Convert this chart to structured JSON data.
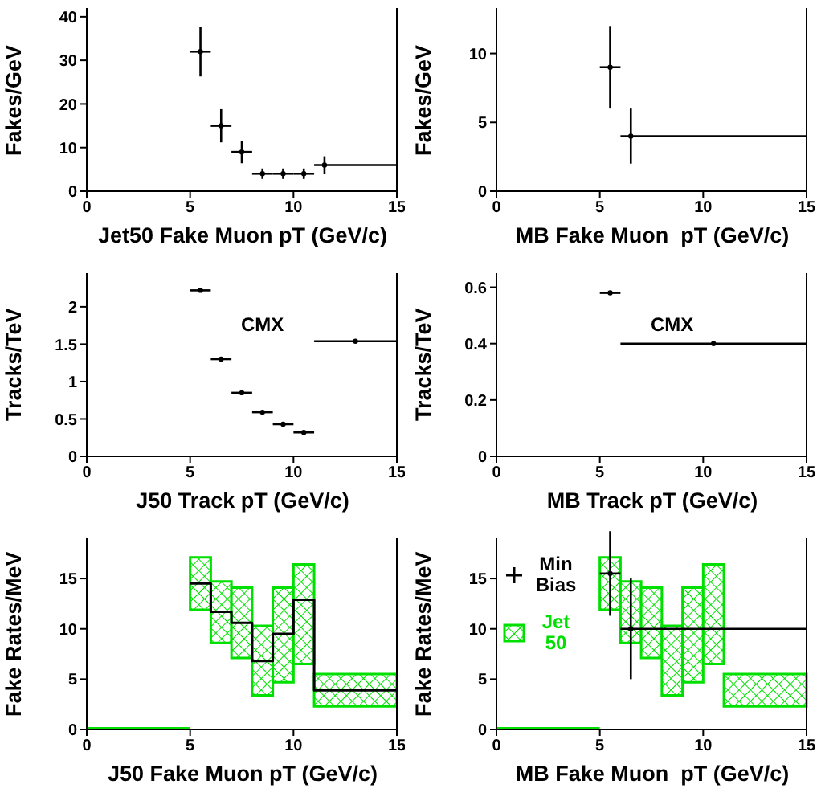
{
  "chart_data": [
    {
      "type": "scatter",
      "xlabel": "Jet50 Fake Muon pT (GeV/c)",
      "ylabel": "Fakes/GeV",
      "color": "#000000",
      "x": [
        5.5,
        6.5,
        7.5,
        8.5,
        9.5,
        10.5,
        11.5
      ],
      "values": [
        32,
        15,
        9,
        4,
        4,
        4,
        6
      ],
      "errors": [
        5.7,
        3.8,
        2.6,
        1.2,
        1.2,
        1.2,
        2
      ],
      "xerrors": [
        0.5,
        0.5,
        0.5,
        0.5,
        0.5,
        0.5,
        [
          11,
          15
        ]
      ],
      "xlim": [
        0,
        15
      ],
      "xticks": [
        0,
        5,
        10,
        15
      ],
      "ylim": [
        0,
        42
      ],
      "yticks": [
        0,
        10,
        20,
        30,
        40
      ]
    },
    {
      "type": "scatter",
      "xlabel": "MB Fake Muon  pT (GeV/c)",
      "ylabel": "Fakes/GeV",
      "color": "#000000",
      "x": [
        5.5,
        6.5
      ],
      "values": [
        9,
        4
      ],
      "errors": [
        3,
        2
      ],
      "xerrors": [
        0.5,
        [
          6,
          15
        ]
      ],
      "xlim": [
        0,
        15
      ],
      "xticks": [
        0,
        5,
        10,
        15
      ],
      "ylim": [
        0,
        13.3
      ],
      "yticks": [
        0,
        5,
        10
      ]
    },
    {
      "type": "scatter",
      "xlabel": "J50 Track pT (GeV/c)",
      "ylabel": "Tracks/TeV",
      "annotations": [
        "CMX"
      ],
      "color": "#000000",
      "x": [
        5.5,
        6.5,
        7.5,
        8.5,
        9.5,
        10.5,
        13
      ],
      "values": [
        2.22,
        1.3,
        0.85,
        0.59,
        0.43,
        0.32,
        1.54
      ],
      "xerrors": [
        0.5,
        0.5,
        0.5,
        0.5,
        0.5,
        0.5,
        2
      ],
      "xlim": [
        0,
        15
      ],
      "xticks": [
        0,
        5,
        10,
        15
      ],
      "ylim": [
        0,
        2.45
      ],
      "yticks": [
        0,
        0.5,
        1,
        1.5,
        2
      ]
    },
    {
      "type": "scatter",
      "xlabel": "MB Track pT (GeV/c)",
      "ylabel": "Tracks/TeV",
      "annotations": [
        "CMX"
      ],
      "color": "#000000",
      "x": [
        5.5,
        10.5
      ],
      "values": [
        0.58,
        0.4
      ],
      "xerrors": [
        0.5,
        4.5
      ],
      "xlim": [
        0,
        15
      ],
      "xticks": [
        0,
        5,
        10,
        15
      ],
      "ylim": [
        0,
        0.65
      ],
      "yticks": [
        0,
        0.2,
        0.4,
        0.6
      ]
    },
    {
      "type": "histogram",
      "xlabel": "J50 Fake Muon pT (GeV/c)",
      "ylabel": "Fake Rates/MeV",
      "bins": [
        5,
        6,
        7,
        8,
        9,
        10,
        11,
        15
      ],
      "series": [
        {
          "color": "#00e000",
          "values": [
            5.2,
            6.1,
            7.0,
            6.9,
            9.4,
            9.9,
            3.2
          ],
          "base": [
            11.9,
            8.6,
            7.1,
            3.4,
            4.7,
            6.5,
            2.3
          ]
        },
        {
          "type": "line",
          "color": "#00e000",
          "x": [
            0,
            5
          ],
          "values": [
            0,
            0
          ]
        },
        {
          "color": "#000000",
          "values": [
            14.5,
            11.7,
            10.6,
            6.8,
            9.5,
            12.9,
            3.9
          ]
        }
      ],
      "xlim": [
        0,
        15
      ],
      "xticks": [
        0,
        5,
        10,
        15
      ],
      "ylim": [
        0,
        19
      ],
      "yticks": [
        0,
        5,
        10,
        15
      ]
    },
    {
      "type": "histogram",
      "legend": "top left",
      "xlabel": "MB Fake Muon  pT (GeV/c)",
      "ylabel": "Fake Rates/MeV",
      "bins": [
        5,
        6,
        7,
        8,
        9,
        10,
        11,
        15
      ],
      "series": [
        {
          "name": "Min Bias",
          "type": "scatter",
          "color": "#000000",
          "x": [
            5.5,
            6.5
          ],
          "values": [
            15.5,
            10
          ],
          "errors": [
            4.2,
            5
          ],
          "xerrors": [
            0.5,
            [
              6,
              15
            ]
          ]
        },
        {
          "name": "Jet 50",
          "color": "#00e000",
          "values": [
            5.2,
            6.1,
            7.0,
            6.9,
            9.4,
            9.9,
            3.2
          ],
          "base": [
            11.9,
            8.6,
            7.1,
            3.4,
            4.7,
            6.5,
            2.3
          ]
        },
        {
          "type": "line",
          "color": "#00e000",
          "x": [
            0,
            5
          ],
          "values": [
            0,
            0
          ]
        }
      ],
      "xlim": [
        0,
        15
      ],
      "xticks": [
        0,
        5,
        10,
        15
      ],
      "ylim": [
        0,
        19
      ],
      "yticks": [
        0,
        5,
        10,
        15
      ]
    }
  ]
}
